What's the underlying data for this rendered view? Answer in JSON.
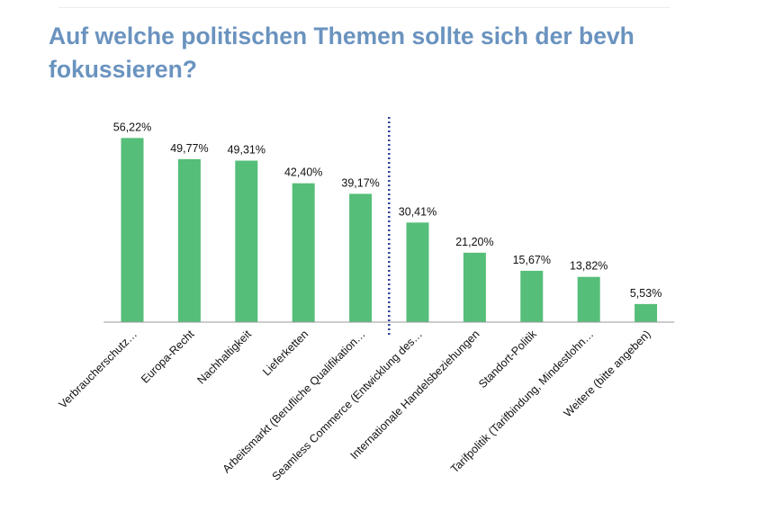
{
  "title": "Auf welche politischen Themen sollte sich der bevh fokussieren?",
  "colors": {
    "title": "#6a93bf",
    "bar": "#55be79",
    "divider": "#2f3f9a",
    "axis": "#999999"
  },
  "chart_data": {
    "type": "bar",
    "title": "Auf welche politischen Themen sollte sich der bevh fokussieren?",
    "xlabel": "",
    "ylabel": "",
    "ylim": [
      0,
      60
    ],
    "grid": false,
    "legend": "none",
    "divider_after_category_index": 4,
    "categories": [
      "Verbraucherschutz…",
      "Europa-Recht",
      "Nachhaltigkeit",
      "Lieferketten",
      "Arbeitsmarkt (Berufliche Qualifikation…",
      "Seamless Commerce (Entwicklung des…",
      "Internationale Handelsbeziehungen",
      "Standort-Politik",
      "Tarifpolitik (Tarifbindung, Mindestlohn…",
      "Weitere (bitte angeben)"
    ],
    "values": [
      56.22,
      49.77,
      49.31,
      42.4,
      39.17,
      30.41,
      21.2,
      15.67,
      13.82,
      5.53
    ],
    "value_labels": [
      "56,22%",
      "49,77%",
      "49,31%",
      "42,40%",
      "39,17%",
      "30,41%",
      "21,20%",
      "15,67%",
      "13,82%",
      "5,53%"
    ]
  }
}
